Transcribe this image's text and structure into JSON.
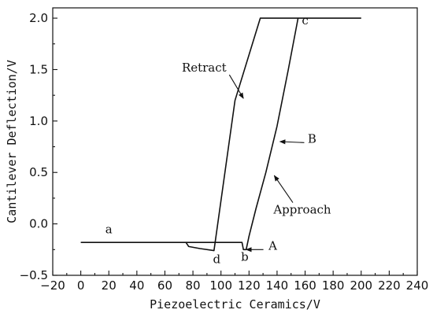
{
  "chart_data": {
    "type": "line",
    "title": "",
    "xlabel": "Piezoelectric Ceramics/V",
    "ylabel": "Cantilever Deflection/V",
    "xlim": [
      -20,
      240
    ],
    "ylim": [
      -0.5,
      2.1
    ],
    "xticks": [
      -20,
      0,
      20,
      40,
      60,
      80,
      100,
      120,
      140,
      160,
      180,
      200,
      220,
      240
    ],
    "yticks": [
      -0.5,
      0.0,
      0.5,
      1.0,
      1.5,
      2.0
    ],
    "ytick_labels": [
      "−0.5",
      "0.0",
      "0.5",
      "1.0",
      "1.5",
      "2.0"
    ],
    "xtick_labels": [
      "−20",
      "0",
      "20",
      "40",
      "60",
      "80",
      "100",
      "120",
      "140",
      "160",
      "180",
      "200",
      "220",
      "240"
    ],
    "grid": false,
    "legend": "none",
    "series": [
      {
        "x": [
          0,
          20,
          40,
          60,
          75,
          77,
          85,
          95,
          110,
          128,
          200
        ],
        "y": [
          -0.18,
          -0.18,
          -0.18,
          -0.18,
          -0.18,
          -0.22,
          -0.24,
          -0.26,
          1.2,
          2.0,
          2.0
        ]
      },
      {
        "x": [
          75,
          100,
          115,
          116,
          118,
          120,
          125,
          132,
          140,
          148,
          155
        ],
        "y": [
          -0.18,
          -0.18,
          -0.18,
          -0.25,
          -0.25,
          -0.12,
          0.15,
          0.5,
          0.95,
          1.5,
          2.0
        ]
      }
    ],
    "annotations": [
      {
        "text": "a",
        "x": 20,
        "y": -0.09
      },
      {
        "text": "b",
        "x": 117,
        "y": -0.36
      },
      {
        "text": "c",
        "x": 160,
        "y": 1.94
      },
      {
        "text": "d",
        "x": 97,
        "y": -0.38
      },
      {
        "text": "A",
        "x": 137,
        "y": -0.25,
        "arrow_to": [
          118,
          -0.25
        ]
      },
      {
        "text": "B",
        "x": 165,
        "y": 0.79,
        "arrow_to": [
          142,
          0.8
        ]
      },
      {
        "text": "Retract",
        "x": 88,
        "y": 1.48,
        "arrow_to": [
          116,
          1.22
        ]
      },
      {
        "text": "Approach",
        "x": 158,
        "y": 0.1,
        "arrow_to": [
          138,
          0.47
        ]
      }
    ]
  }
}
